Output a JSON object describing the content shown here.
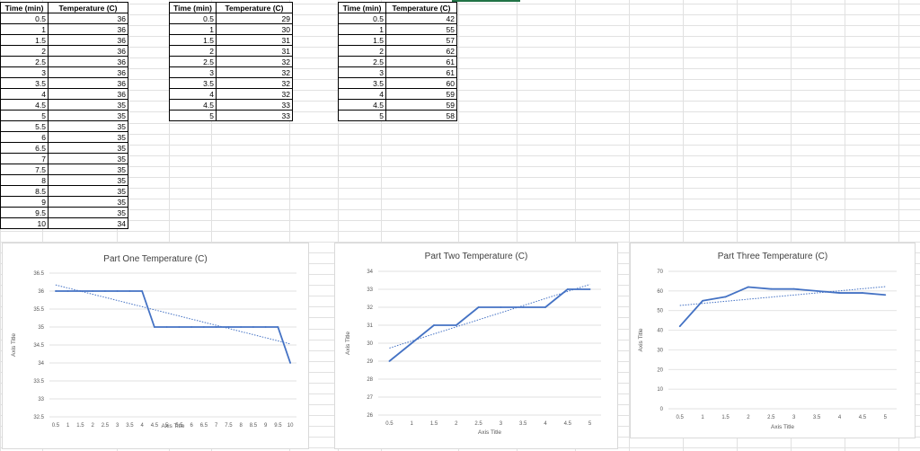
{
  "tables": [
    {
      "headers": [
        "Time (min)",
        "Temperature (C)"
      ],
      "rows": [
        [
          "0.5",
          "36"
        ],
        [
          "1",
          "36"
        ],
        [
          "1.5",
          "36"
        ],
        [
          "2",
          "36"
        ],
        [
          "2.5",
          "36"
        ],
        [
          "3",
          "36"
        ],
        [
          "3.5",
          "36"
        ],
        [
          "4",
          "36"
        ],
        [
          "4.5",
          "35"
        ],
        [
          "5",
          "35"
        ],
        [
          "5.5",
          "35"
        ],
        [
          "6",
          "35"
        ],
        [
          "6.5",
          "35"
        ],
        [
          "7",
          "35"
        ],
        [
          "7.5",
          "35"
        ],
        [
          "8",
          "35"
        ],
        [
          "8.5",
          "35"
        ],
        [
          "9",
          "35"
        ],
        [
          "9.5",
          "35"
        ],
        [
          "10",
          "34"
        ]
      ]
    },
    {
      "headers": [
        "Time (min)",
        "Temperature (C)"
      ],
      "rows": [
        [
          "0.5",
          "29"
        ],
        [
          "1",
          "30"
        ],
        [
          "1.5",
          "31"
        ],
        [
          "2",
          "31"
        ],
        [
          "2.5",
          "32"
        ],
        [
          "3",
          "32"
        ],
        [
          "3.5",
          "32"
        ],
        [
          "4",
          "32"
        ],
        [
          "4.5",
          "33"
        ],
        [
          "5",
          "33"
        ]
      ]
    },
    {
      "headers": [
        "Time (min)",
        "Temperature (C)"
      ],
      "rows": [
        [
          "0.5",
          "42"
        ],
        [
          "1",
          "55"
        ],
        [
          "1.5",
          "57"
        ],
        [
          "2",
          "62"
        ],
        [
          "2.5",
          "61"
        ],
        [
          "3",
          "61"
        ],
        [
          "3.5",
          "60"
        ],
        [
          "4",
          "59"
        ],
        [
          "4.5",
          "59"
        ],
        [
          "5",
          "58"
        ]
      ]
    }
  ],
  "colors": {
    "line": "#4472c4",
    "trend": "#4472c4",
    "grid": "#d9d9d9"
  },
  "chart_data": [
    {
      "type": "line",
      "title": "Part One Temperature (C)",
      "xlabel": "Axis Title",
      "ylabel": "Axis Title",
      "categories": [
        "0.5",
        "1",
        "1.5",
        "2",
        "2.5",
        "3",
        "3.5",
        "4",
        "4.5",
        "5",
        "5.5",
        "6",
        "6.5",
        "7",
        "7.5",
        "8",
        "8.5",
        "9",
        "9.5",
        "10"
      ],
      "values": [
        36,
        36,
        36,
        36,
        36,
        36,
        36,
        36,
        35,
        35,
        35,
        35,
        35,
        35,
        35,
        35,
        35,
        35,
        35,
        34
      ],
      "ylim": [
        32.5,
        36.5
      ],
      "yticks": [
        "32.5",
        "33",
        "33.5",
        "34",
        "34.5",
        "35",
        "35.5",
        "36",
        "36.5"
      ],
      "trendline": "linear",
      "grid": true
    },
    {
      "type": "line",
      "title": "Part Two Temperature (C)",
      "xlabel": "Axis Title",
      "ylabel": "Axis Title",
      "categories": [
        "0.5",
        "1",
        "1.5",
        "2",
        "2.5",
        "3",
        "3.5",
        "4",
        "4.5",
        "5"
      ],
      "values": [
        29,
        30,
        31,
        31,
        32,
        32,
        32,
        32,
        33,
        33
      ],
      "ylim": [
        26,
        34
      ],
      "yticks": [
        "26",
        "27",
        "28",
        "29",
        "30",
        "31",
        "32",
        "33",
        "34"
      ],
      "trendline": "linear",
      "grid": true
    },
    {
      "type": "line",
      "title": "Part Three Temperature (C)",
      "xlabel": "Axis Title",
      "ylabel": "Axis Title",
      "categories": [
        "0.5",
        "1",
        "1.5",
        "2",
        "2.5",
        "3",
        "3.5",
        "4",
        "4.5",
        "5"
      ],
      "values": [
        42,
        55,
        57,
        62,
        61,
        61,
        60,
        59,
        59,
        58
      ],
      "ylim": [
        0,
        70
      ],
      "yticks": [
        "0",
        "10",
        "20",
        "30",
        "40",
        "50",
        "60",
        "70"
      ],
      "trendline": "linear",
      "grid": true
    }
  ]
}
